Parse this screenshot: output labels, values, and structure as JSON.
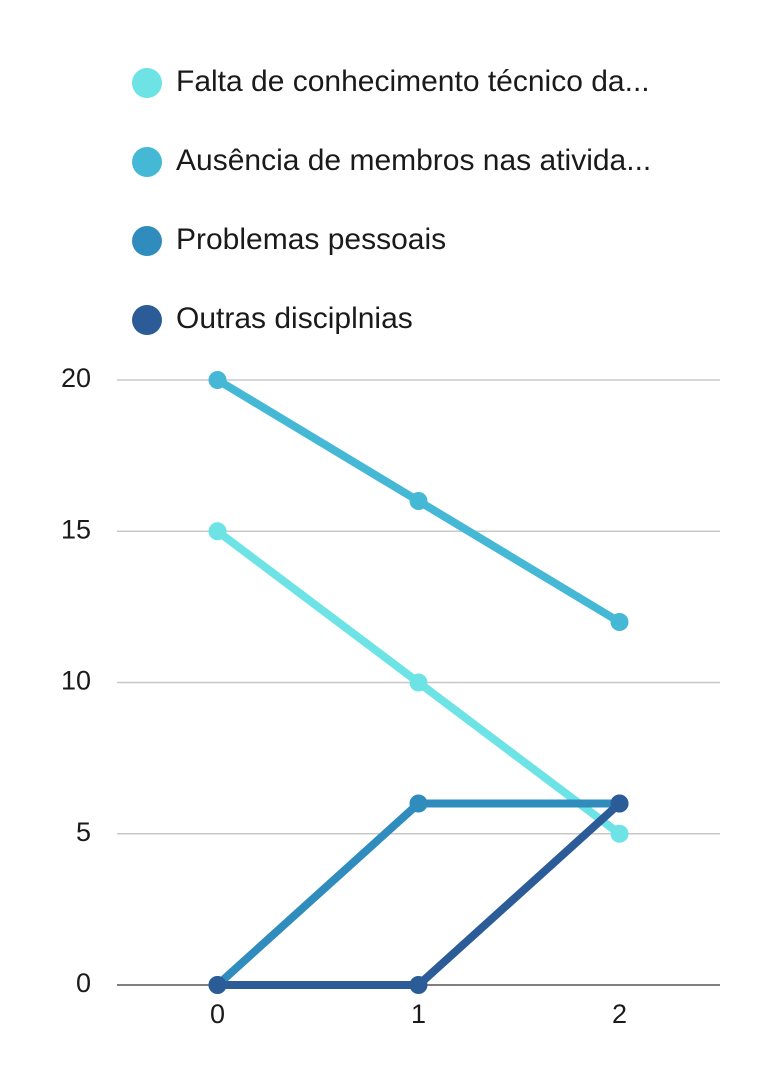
{
  "chart_data": {
    "type": "line",
    "title": "",
    "xlabel": "",
    "ylabel": "",
    "x": [
      0,
      1,
      2
    ],
    "x_tick_labels": [
      "0",
      "1",
      "2"
    ],
    "y_tick_labels": [
      "0",
      "5",
      "10",
      "15",
      "20"
    ],
    "ylim": [
      0,
      20
    ],
    "xlim": [
      -0.5,
      2.5
    ],
    "grid": true,
    "legend_position": "top",
    "series": [
      {
        "name": "Falta de conhecimento técnico da...",
        "color": "#6de3e6",
        "values": [
          15,
          10,
          5
        ]
      },
      {
        "name": "Ausência de membros nas ativida...",
        "color": "#45b8d6",
        "values": [
          20,
          16,
          12
        ]
      },
      {
        "name": "Problemas pessoais",
        "color": "#2f8cbd",
        "values": [
          0,
          6,
          6
        ]
      },
      {
        "name": "Outras disciplnias",
        "color": "#2c5c98",
        "values": [
          0,
          0,
          6
        ]
      }
    ]
  }
}
